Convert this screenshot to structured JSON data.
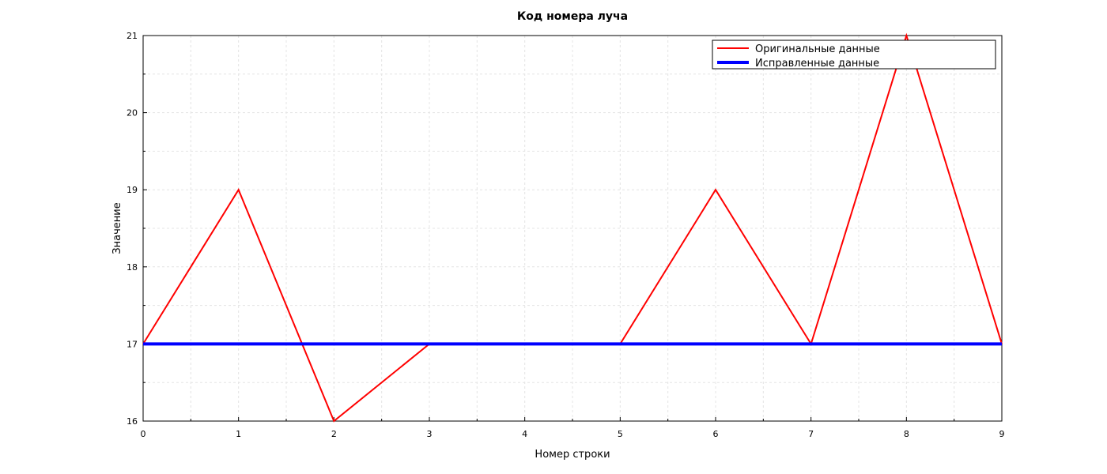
{
  "chart_data": {
    "type": "line",
    "title": "Код номера луча",
    "xlabel": "Номер строки",
    "ylabel": "Значение",
    "xlim": [
      0,
      9
    ],
    "ylim": [
      16,
      21
    ],
    "x_ticks": [
      0,
      1,
      2,
      3,
      4,
      5,
      6,
      7,
      8,
      9
    ],
    "y_ticks": [
      16,
      17,
      18,
      19,
      20,
      21
    ],
    "grid": true,
    "legend_position": "top-right",
    "series": [
      {
        "name": "Оригинальные данные",
        "color": "#ff0000",
        "x": [
          0,
          1,
          2,
          3,
          4,
          5,
          6,
          7,
          8,
          9
        ],
        "values": [
          17,
          19,
          16,
          17,
          17,
          17,
          19,
          17,
          21,
          17
        ]
      },
      {
        "name": "Исправленные данные",
        "color": "#0000ff",
        "x": [
          0,
          1,
          2,
          3,
          4,
          5,
          6,
          7,
          8,
          9
        ],
        "values": [
          17,
          17,
          17,
          17,
          17,
          17,
          17,
          17,
          17,
          17
        ]
      }
    ]
  }
}
